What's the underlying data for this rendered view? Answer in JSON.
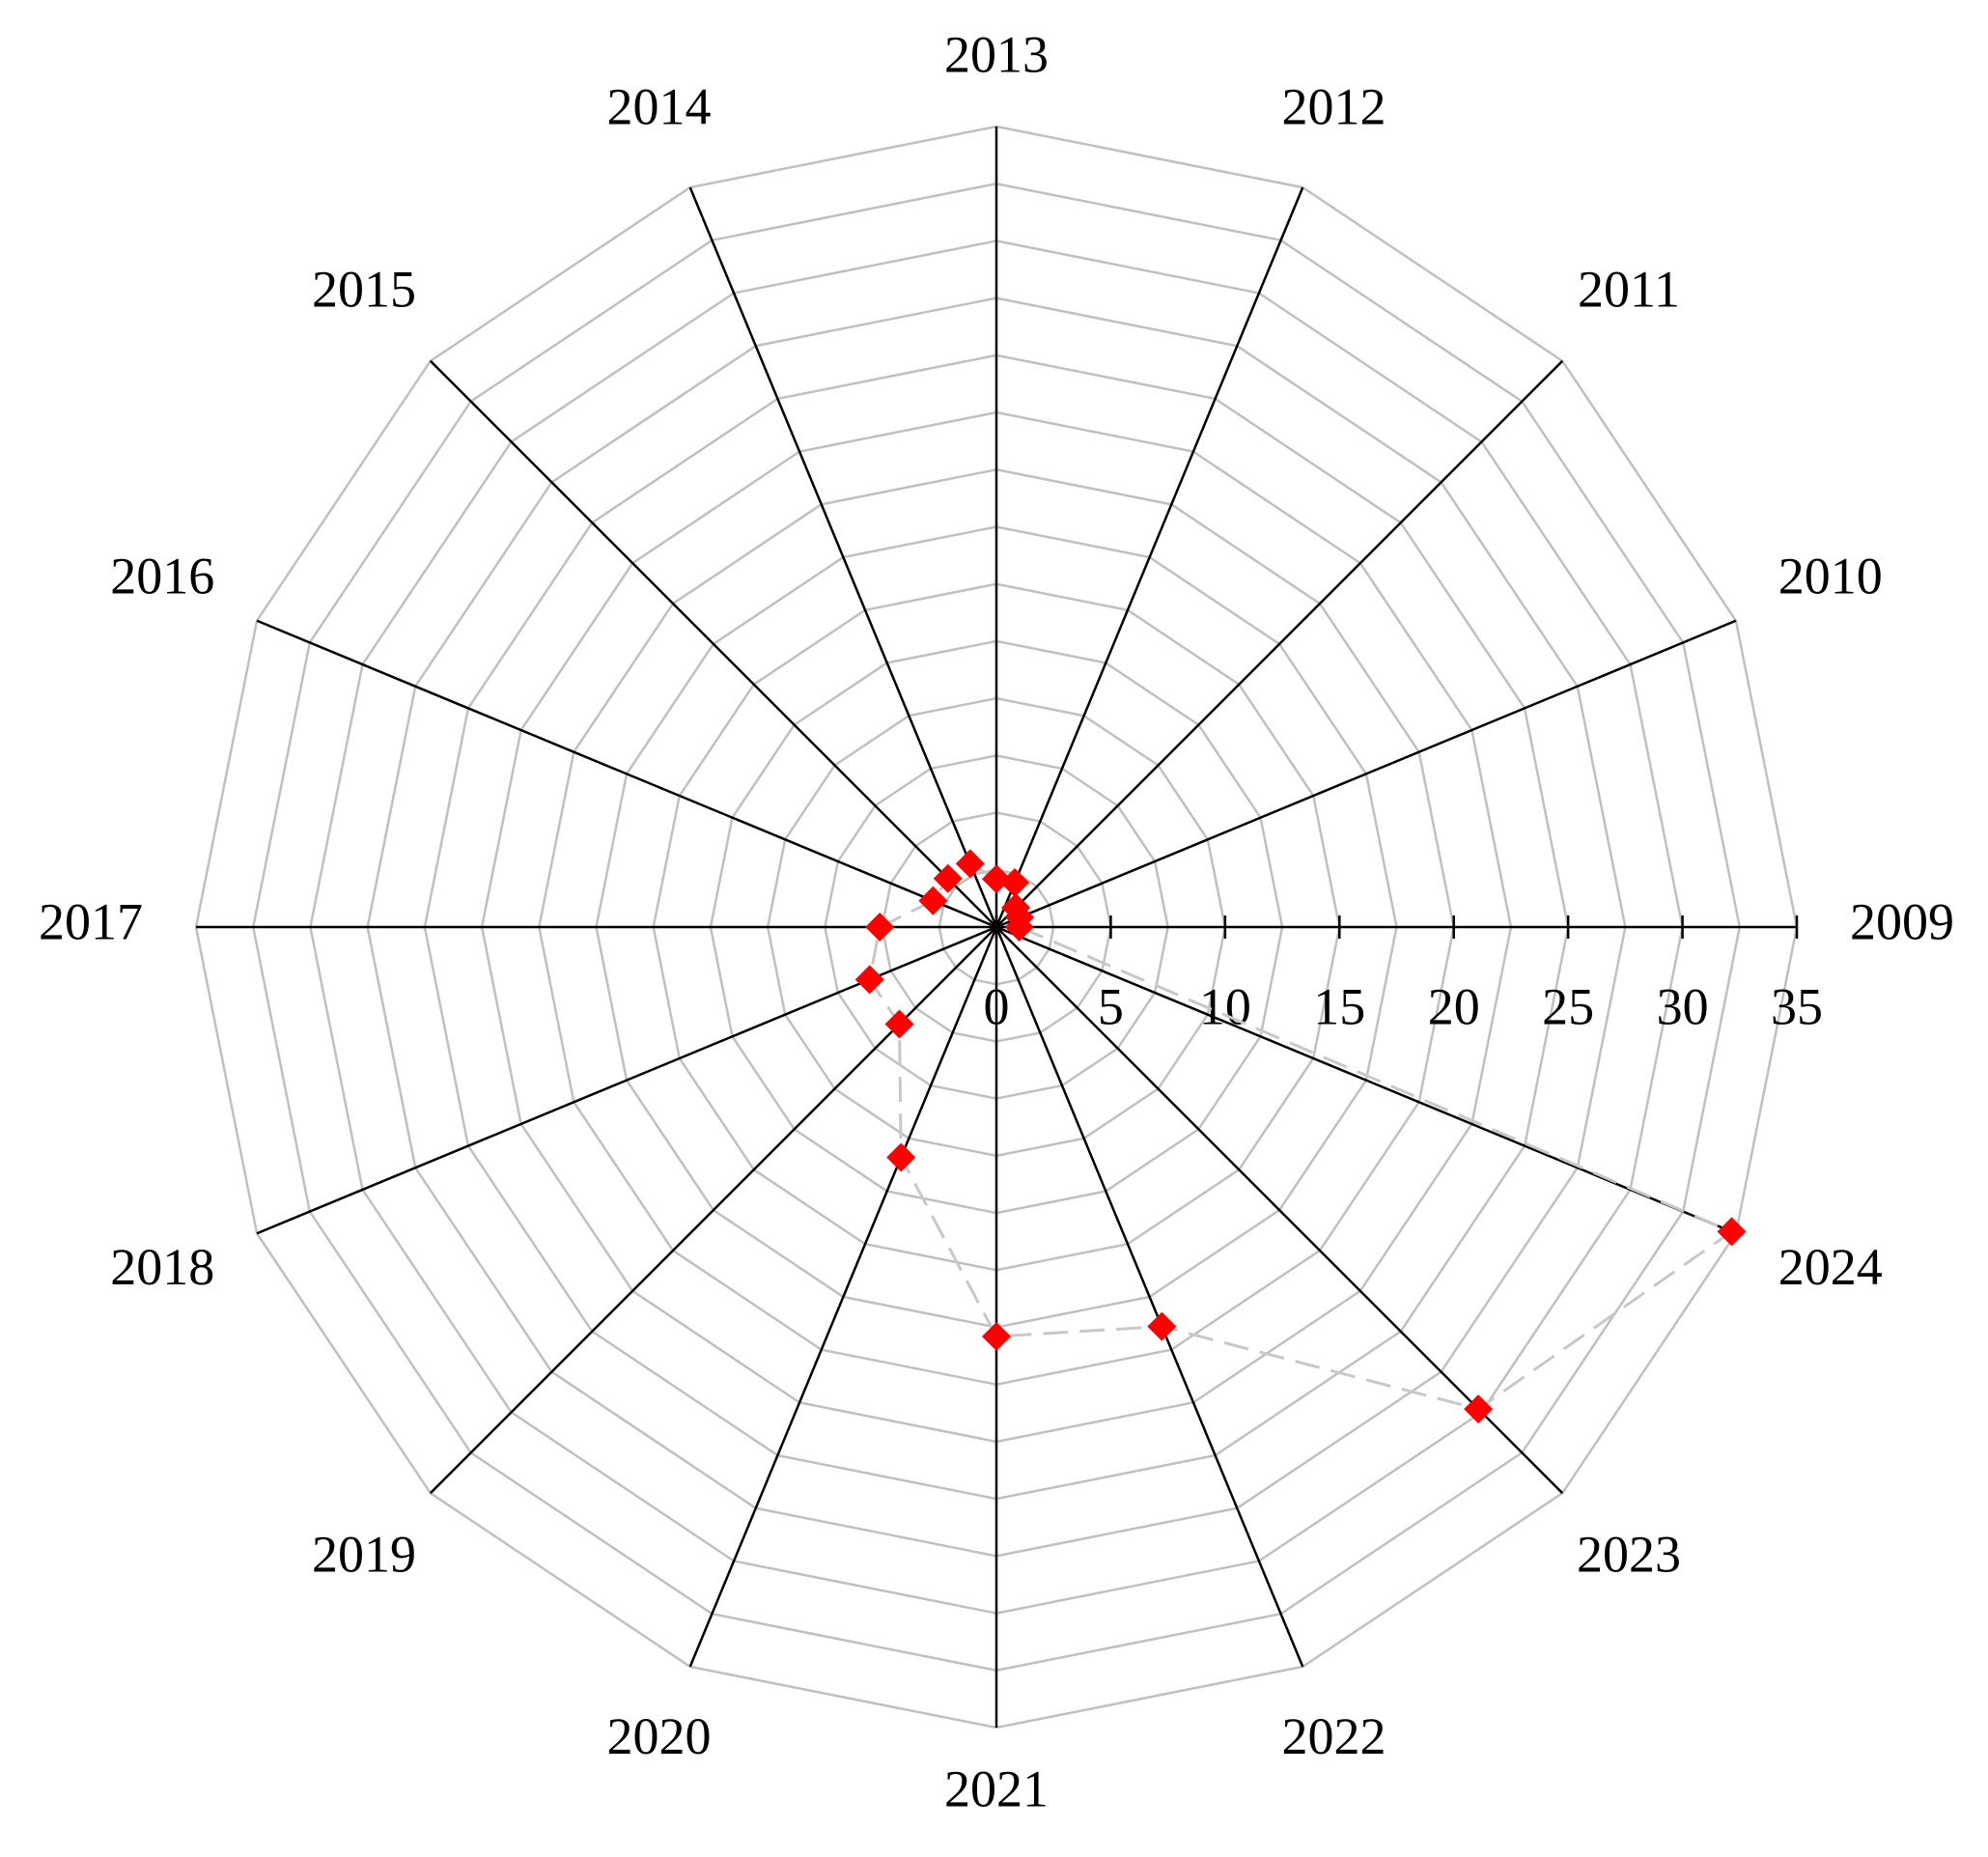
{
  "chart_data": {
    "type": "radar",
    "categories": [
      "2009",
      "2010",
      "2011",
      "2012",
      "2013",
      "2014",
      "2015",
      "2016",
      "2017",
      "2018",
      "2019",
      "2020",
      "2021",
      "2022",
      "2023",
      "2024"
    ],
    "values": [
      1.0,
      1.1,
      1.2,
      2.1,
      2.1,
      3.0,
      3.0,
      3.0,
      5.1,
      6.0,
      6.0,
      10.9,
      17.9,
      18.9,
      29.8,
      34.8
    ],
    "color": "#ff0000",
    "line_color": "#c8c8c8",
    "line_style": "dashed",
    "marker": "diamond",
    "ylim": [
      0,
      35
    ],
    "yticks": [
      0,
      5,
      10,
      15,
      20,
      25,
      30,
      35
    ],
    "rings": [
      2.5,
      5,
      7.5,
      10,
      12.5,
      15,
      17.5,
      20,
      22.5,
      25,
      27.5,
      30,
      32.5,
      35
    ],
    "grid_color": "#c0c0c0",
    "axis_color": "#000000"
  }
}
